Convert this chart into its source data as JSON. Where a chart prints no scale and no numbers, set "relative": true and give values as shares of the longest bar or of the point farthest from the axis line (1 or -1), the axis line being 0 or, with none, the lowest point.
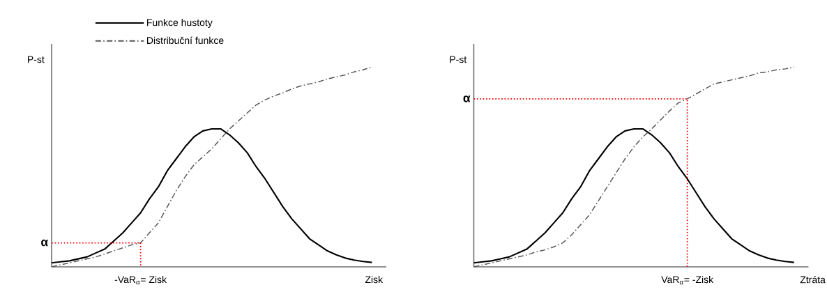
{
  "chart_data": [
    {
      "type": "line",
      "relative": true,
      "xlabel": "Zisk",
      "ylabel": "P-st",
      "legend": "top left",
      "annotations": [
        "-VaR$_{α}$= Zisk"
      ],
      "categories": [
        null,
        null,
        null,
        null,
        null,
        null,
        null,
        null,
        null,
        null,
        null,
        null,
        null,
        null,
        null,
        null,
        null,
        null,
        null,
        null,
        null,
        null,
        null,
        null,
        null,
        null,
        null,
        null,
        null,
        null,
        null,
        null,
        null,
        null,
        null,
        null,
        null
      ],
      "series": [
        {
          "name": "Funkce hustoty",
          "color": "#000000",
          "line_style": "solid",
          "values": [
            0.02,
            0.025,
            0.03,
            0.04,
            0.05,
            0.07,
            0.09,
            0.13,
            0.17,
            0.22,
            0.27,
            0.34,
            0.4,
            0.48,
            0.54,
            0.6,
            0.65,
            0.68,
            0.69,
            0.69,
            0.66,
            0.62,
            0.57,
            0.5,
            0.44,
            0.37,
            0.3,
            0.24,
            0.19,
            0.14,
            0.11,
            0.08,
            0.06,
            0.044,
            0.034,
            0.027,
            0.022
          ]
        },
        {
          "name": "Distribuční funkce",
          "color": "#555555",
          "line_style": "dashdot",
          "values": [
            0,
            0.01,
            0.02,
            0.03,
            0.04,
            0.05,
            0.065,
            0.08,
            0.095,
            0.11,
            0.12,
            0.17,
            0.22,
            0.3,
            0.38,
            0.45,
            0.51,
            0.55,
            0.59,
            0.64,
            0.69,
            0.73,
            0.77,
            0.81,
            0.835,
            0.855,
            0.87,
            0.89,
            0.905,
            0.915,
            0.925,
            0.94,
            0.95,
            0.96,
            0.975,
            0.985,
            1.0
          ]
        }
      ],
      "ref_lines": [
        {
          "axis": "y",
          "value": 0.12,
          "label": "α",
          "color": "#ff0000",
          "line_style": "dotted"
        }
      ]
    },
    {
      "type": "line",
      "relative": true,
      "xlabel": "Ztráta",
      "ylabel": "P-st",
      "annotations": [
        "VaR$_{α}$= -Zisk"
      ],
      "categories": [
        null,
        null,
        null,
        null,
        null,
        null,
        null,
        null,
        null,
        null,
        null,
        null,
        null,
        null,
        null,
        null,
        null,
        null,
        null,
        null,
        null,
        null,
        null,
        null,
        null,
        null,
        null,
        null,
        null,
        null,
        null,
        null,
        null,
        null,
        null,
        null,
        null
      ],
      "series": [
        {
          "color": "#000000",
          "line_style": "solid",
          "values": [
            0.02,
            0.025,
            0.03,
            0.04,
            0.05,
            0.07,
            0.09,
            0.13,
            0.17,
            0.22,
            0.27,
            0.34,
            0.4,
            0.48,
            0.54,
            0.6,
            0.65,
            0.68,
            0.69,
            0.69,
            0.66,
            0.62,
            0.57,
            0.5,
            0.44,
            0.37,
            0.3,
            0.24,
            0.19,
            0.14,
            0.11,
            0.08,
            0.06,
            0.044,
            0.034,
            0.027,
            0.022
          ]
        },
        {
          "color": "#555555",
          "line_style": "dashdot",
          "values": [
            0,
            0.01,
            0.02,
            0.03,
            0.04,
            0.05,
            0.06,
            0.075,
            0.085,
            0.1,
            0.12,
            0.16,
            0.21,
            0.26,
            0.33,
            0.4,
            0.47,
            0.54,
            0.6,
            0.65,
            0.69,
            0.735,
            0.78,
            0.82,
            0.84,
            0.865,
            0.89,
            0.915,
            0.925,
            0.935,
            0.945,
            0.955,
            0.97,
            0.975,
            0.985,
            0.99,
            1.0
          ]
        }
      ],
      "ref_lines": [
        {
          "axis": "y",
          "value": 0.84,
          "label": "α",
          "color": "#ff0000",
          "line_style": "dotted"
        }
      ]
    }
  ]
}
